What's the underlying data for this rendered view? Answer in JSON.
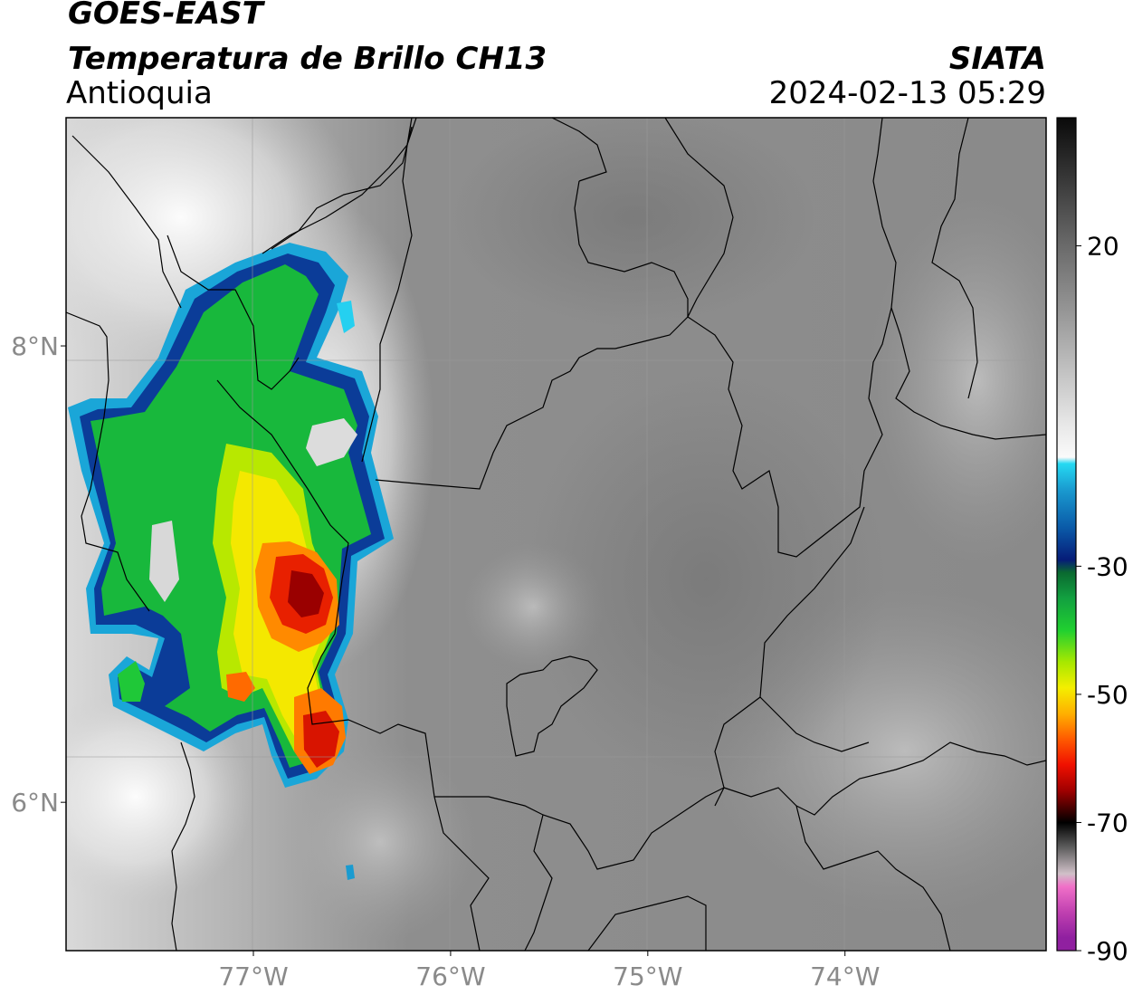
{
  "header": {
    "satellite": "GOES-EAST",
    "product": "Temperatura de Brillo CH13",
    "region": "Antioquia",
    "agency": "SIATA",
    "timestamp": "2024-02-13 05:29"
  },
  "map": {
    "lon_range": [
      -77.95,
      -72.98
    ],
    "lat_range": [
      5.35,
      9.0
    ],
    "lon_ticks": [
      {
        "value": -77,
        "label": "77°W"
      },
      {
        "value": -76,
        "label": "76°W"
      },
      {
        "value": -75,
        "label": "75°W"
      },
      {
        "value": -74,
        "label": "74°W"
      }
    ],
    "lat_ticks": [
      {
        "value": 8,
        "label": "8°N"
      },
      {
        "value": 6,
        "label": "6°N"
      }
    ],
    "background": "grayscale infrared brightness temperature",
    "colors": {
      "frame": "#000000",
      "gridline": "#9a9a9a",
      "boundaries": "#000000"
    }
  },
  "colorbar": {
    "range": [
      -90,
      40
    ],
    "ticks": [
      {
        "value": 20,
        "label": "20"
      },
      {
        "value": -30,
        "label": "-30"
      },
      {
        "value": -50,
        "label": "-50"
      },
      {
        "value": -70,
        "label": "-70"
      },
      {
        "value": -90,
        "label": "-90"
      }
    ],
    "stops": [
      {
        "t": 40,
        "color": "#0a0a0a"
      },
      {
        "t": 30,
        "color": "#3a3a3a"
      },
      {
        "t": 20,
        "color": "#6a6a6a"
      },
      {
        "t": 10,
        "color": "#959595"
      },
      {
        "t": 0,
        "color": "#c4c4c4"
      },
      {
        "t": -8,
        "color": "#e8e8e8"
      },
      {
        "t": -13,
        "color": "#fafafa"
      },
      {
        "t": -14,
        "color": "#25d9f2"
      },
      {
        "t": -18,
        "color": "#1a9bd0"
      },
      {
        "t": -24,
        "color": "#0a5aa8"
      },
      {
        "t": -29,
        "color": "#061c78"
      },
      {
        "t": -31,
        "color": "#0a6a30"
      },
      {
        "t": -35,
        "color": "#12a040"
      },
      {
        "t": -40,
        "color": "#20d030"
      },
      {
        "t": -45,
        "color": "#a8e800"
      },
      {
        "t": -49,
        "color": "#f4ee00"
      },
      {
        "t": -53,
        "color": "#ffb000"
      },
      {
        "t": -57,
        "color": "#ff5a00"
      },
      {
        "t": -61,
        "color": "#f01000"
      },
      {
        "t": -65,
        "color": "#a00000"
      },
      {
        "t": -68,
        "color": "#400000"
      },
      {
        "t": -70,
        "color": "#000000"
      },
      {
        "t": -74,
        "color": "#606060"
      },
      {
        "t": -78,
        "color": "#d0c0c8"
      },
      {
        "t": -80,
        "color": "#f070c8"
      },
      {
        "t": -84,
        "color": "#c040b0"
      },
      {
        "t": -88,
        "color": "#9020a0"
      },
      {
        "t": -89.9,
        "color": "#9020a0"
      },
      {
        "t": -90,
        "color": "#ffffff"
      }
    ]
  }
}
